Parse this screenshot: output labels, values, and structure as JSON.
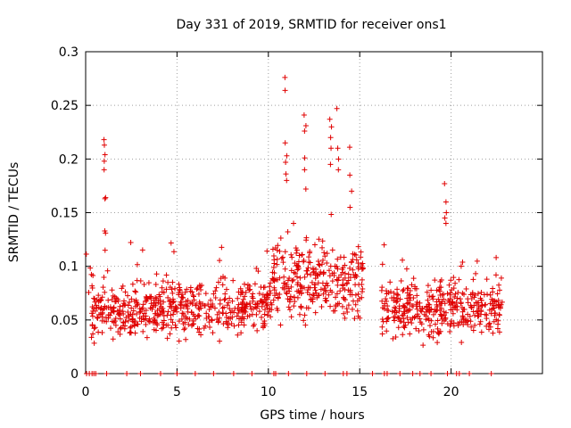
{
  "chart_data": {
    "type": "scatter",
    "title": "Day 331 of 2019, SRMTID for receiver ons1",
    "xlabel": "GPS time / hours",
    "ylabel": "SRMTID / TECUs",
    "xlim": [
      0,
      25
    ],
    "ylim": [
      0,
      0.3
    ],
    "grid": true,
    "marker": "+",
    "color": "#e00000",
    "x_ticks": [
      "0",
      "5",
      "10",
      "15",
      "20"
    ],
    "y_ticks": [
      "0",
      "0.05",
      "0.1",
      "0.15",
      "0.2",
      "0.25",
      "0.3"
    ],
    "series": [
      {
        "name": "SRMTID",
        "segments": [
          {
            "start": 0.0,
            "end": 0.4,
            "base": 0.085,
            "spread": 0.015,
            "count": 6
          },
          {
            "start": 0.3,
            "end": 2.6,
            "base": 0.058,
            "spread": 0.022,
            "count": 130
          },
          {
            "start": 2.6,
            "end": 10.2,
            "base": 0.062,
            "spread": 0.022,
            "count": 420
          },
          {
            "start": 10.2,
            "end": 15.2,
            "base": 0.085,
            "spread": 0.03,
            "count": 300
          },
          {
            "start": 16.2,
            "end": 22.8,
            "base": 0.06,
            "spread": 0.02,
            "count": 380
          }
        ],
        "spikes": [
          {
            "x": 1.05,
            "y": [
              0.218,
              0.213,
              0.204,
              0.198,
              0.19,
              0.164,
              0.163,
              0.133,
              0.131,
              0.115
            ]
          },
          {
            "x": 10.95,
            "y": [
              0.276,
              0.264,
              0.215,
              0.203,
              0.197,
              0.186,
              0.18
            ]
          },
          {
            "x": 12.0,
            "y": [
              0.241,
              0.231,
              0.226,
              0.201,
              0.19,
              0.172
            ]
          },
          {
            "x": 13.4,
            "y": [
              0.237,
              0.23,
              0.22,
              0.21,
              0.195
            ]
          },
          {
            "x": 13.8,
            "y": [
              0.247,
              0.21,
              0.2,
              0.19
            ]
          },
          {
            "x": 14.5,
            "y": [
              0.211,
              0.185,
              0.17,
              0.155
            ]
          },
          {
            "x": 19.7,
            "y": [
              0.177,
              0.16,
              0.15,
              0.145,
              0.14
            ]
          }
        ],
        "zero_markers": [
          0.05,
          0.2,
          0.35,
          0.45,
          0.55,
          1.15,
          2.25,
          3.0,
          4.1,
          5.0,
          6.0,
          7.0,
          8.1,
          9.1,
          10.3,
          10.4,
          11.1,
          12.1,
          13.1,
          14.1,
          14.3,
          15.7,
          16.35,
          16.5,
          17.2,
          17.9,
          18.3,
          18.9,
          19.8,
          20.3,
          20.45,
          21.0,
          22.2
        ]
      }
    ]
  }
}
